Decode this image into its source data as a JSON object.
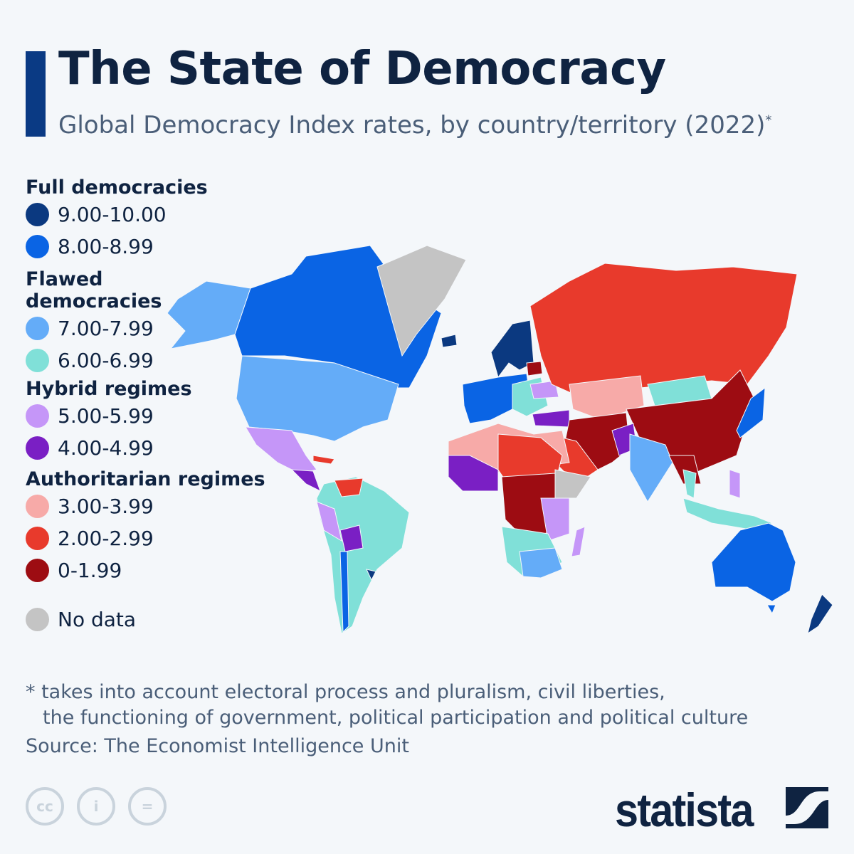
{
  "header": {
    "title": "The State of Democracy",
    "subtitle": "Global Democracy Index rates, by country/territory (2022)",
    "subtitle_mark": "*"
  },
  "legend": {
    "groups": [
      {
        "label": "Full democracies",
        "items": [
          {
            "range": "9.00-10.00",
            "color": "#0b3980"
          },
          {
            "range": "8.00-8.99",
            "color": "#0a64e4"
          }
        ]
      },
      {
        "label": "Flawed democracies",
        "items": [
          {
            "range": "7.00-7.99",
            "color": "#64acf8"
          },
          {
            "range": "6.00-6.99",
            "color": "#80e0d8"
          }
        ]
      },
      {
        "label": "Hybrid regimes",
        "items": [
          {
            "range": "5.00-5.99",
            "color": "#c596f8"
          },
          {
            "range": "4.00-4.99",
            "color": "#7a1fc4"
          }
        ]
      },
      {
        "label": "Authoritarian regimes",
        "items": [
          {
            "range": "3.00-3.99",
            "color": "#f7aaa8"
          },
          {
            "range": "2.00-2.99",
            "color": "#e83a2c"
          },
          {
            "range": "0-1.99",
            "color": "#9d0c12"
          }
        ]
      }
    ],
    "no_data": {
      "label": "No data",
      "color": "#c4c4c4"
    }
  },
  "footer": {
    "note_line1": "* takes into account electoral process and pluralism, civil liberties,",
    "note_line2": "the functioning of government, political participation and political culture",
    "source": "Source: The Economist Intelligence Unit",
    "license_icons": [
      "creative-commons-icon",
      "attribution-icon",
      "no-derivatives-icon"
    ],
    "license_cc": "cc",
    "license_eq": "=",
    "license_i": "i",
    "brand": "statista"
  }
}
